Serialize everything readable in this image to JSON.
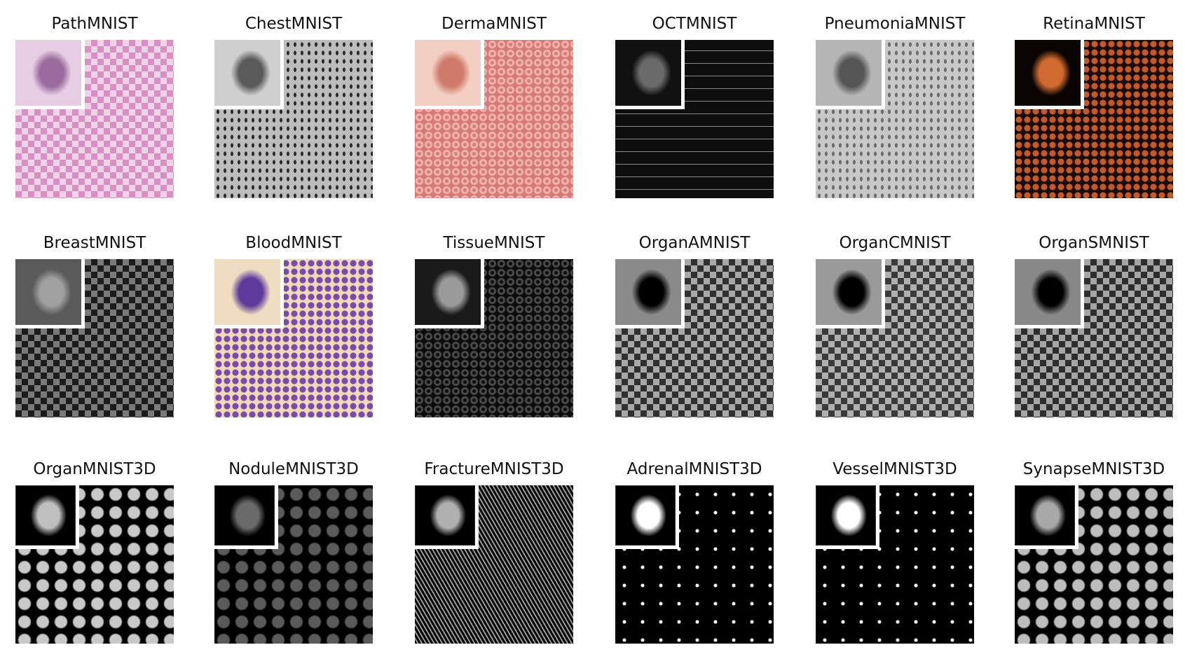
{
  "figure": {
    "panels": [
      {
        "title": "PathMNIST",
        "kind": "2d",
        "base": "#d98fc4",
        "cell": "#efd3e8",
        "inset": "#e6cde4",
        "inset_accent": "#9b6a9e",
        "pattern": "check"
      },
      {
        "title": "ChestMNIST",
        "kind": "2d",
        "base": "#2a2a2a",
        "cell": "#bdbdbd",
        "inset": "#cfcfcf",
        "inset_accent": "#5a5a5a",
        "pattern": "xray"
      },
      {
        "title": "DermaMNIST",
        "kind": "2d",
        "base": "#d7787a",
        "cell": "#efb5a8",
        "inset": "#f3cfc3",
        "inset_accent": "#d07a6a",
        "pattern": "dots"
      },
      {
        "title": "OCTMNIST",
        "kind": "2d",
        "base": "#0e0e0e",
        "cell": "#8a8a8a",
        "inset": "#111111",
        "inset_accent": "#6a6a6a",
        "pattern": "lines"
      },
      {
        "title": "PneumoniaMNIST",
        "kind": "2d",
        "base": "#6a6a6a",
        "cell": "#c8c8c8",
        "inset": "#b5b5b5",
        "inset_accent": "#555555",
        "pattern": "xray"
      },
      {
        "title": "RetinaMNIST",
        "kind": "2d",
        "base": "#1a0d06",
        "cell": "#c45a2a",
        "inset": "#0a0502",
        "inset_accent": "#d06a30",
        "pattern": "circles"
      },
      {
        "title": "BreastMNIST",
        "kind": "2d",
        "base": "#1c1c1c",
        "cell": "#7a7a7a",
        "inset": "#5a5a5a",
        "inset_accent": "#a0a0a0",
        "pattern": "check"
      },
      {
        "title": "BloodMNIST",
        "kind": "2d",
        "base": "#f0d9b8",
        "cell": "#7a4aa8",
        "inset": "#f0dcc0",
        "inset_accent": "#5e3a9a",
        "pattern": "circles"
      },
      {
        "title": "TissueMNIST",
        "kind": "2d",
        "base": "#0c0c0c",
        "cell": "#4a4a4a",
        "inset": "#1a1a1a",
        "inset_accent": "#9a9a9a",
        "pattern": "dots"
      },
      {
        "title": "OrganAMNIST",
        "kind": "2d",
        "base": "#303030",
        "cell": "#a8a8a8",
        "inset": "#8a8a8a",
        "inset_accent": "#000000",
        "pattern": "check"
      },
      {
        "title": "OrganCMNIST",
        "kind": "2d",
        "base": "#3a3a3a",
        "cell": "#b0b0b0",
        "inset": "#9a9a9a",
        "inset_accent": "#000000",
        "pattern": "check"
      },
      {
        "title": "OrganSMNIST",
        "kind": "2d",
        "base": "#2e2e2e",
        "cell": "#a5a5a5",
        "inset": "#888888",
        "inset_accent": "#000000",
        "pattern": "check"
      },
      {
        "title": "OrganMNIST3D",
        "kind": "3d",
        "base": "#000000",
        "cell": "#c8c8c8",
        "inset": "#000000",
        "inset_accent": "#c0c0c0",
        "pattern": "blocks"
      },
      {
        "title": "NoduleMNIST3D",
        "kind": "3d",
        "base": "#000000",
        "cell": "#5a5a5a",
        "inset": "#000000",
        "inset_accent": "#6a6a6a",
        "pattern": "blocks"
      },
      {
        "title": "FractureMNIST3D",
        "kind": "3d",
        "base": "#000000",
        "cell": "#9a9a9a",
        "inset": "#000000",
        "inset_accent": "#b0b0b0",
        "pattern": "stripes"
      },
      {
        "title": "AdrenalMNIST3D",
        "kind": "3d",
        "base": "#000000",
        "cell": "#ffffff",
        "inset": "#000000",
        "inset_accent": "#ffffff",
        "pattern": "specks"
      },
      {
        "title": "VesselMNIST3D",
        "kind": "3d",
        "base": "#000000",
        "cell": "#ffffff",
        "inset": "#000000",
        "inset_accent": "#ffffff",
        "pattern": "specks"
      },
      {
        "title": "SynapseMNIST3D",
        "kind": "3d",
        "base": "#000000",
        "cell": "#bdbdbd",
        "inset": "#000000",
        "inset_accent": "#a8a8a8",
        "pattern": "blocks"
      }
    ]
  }
}
